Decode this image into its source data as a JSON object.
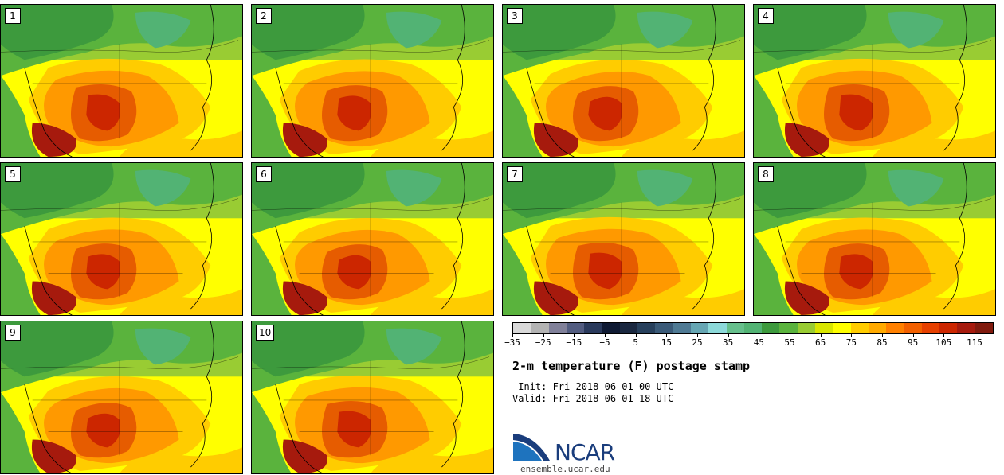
{
  "panels": [
    {
      "label": "1"
    },
    {
      "label": "2"
    },
    {
      "label": "3"
    },
    {
      "label": "4"
    },
    {
      "label": "5"
    },
    {
      "label": "6"
    },
    {
      "label": "7"
    },
    {
      "label": "8"
    },
    {
      "label": "9"
    },
    {
      "label": "10"
    }
  ],
  "colorbar": {
    "colors": [
      "#d9d9d9",
      "#b3b3b3",
      "#808099",
      "#525c80",
      "#2a3a5c",
      "#0f1a33",
      "#1a2840",
      "#27405c",
      "#3a5a78",
      "#4f7a94",
      "#66a6b3",
      "#8cd9d9",
      "#66bf8c",
      "#52b374",
      "#3d9a3d",
      "#5ab33d",
      "#99cc33",
      "#d9e600",
      "#ffff00",
      "#ffcc00",
      "#ffaa00",
      "#ff8000",
      "#f26000",
      "#e64000",
      "#cc2600",
      "#a61a0d",
      "#801a0d"
    ],
    "tick_labels": [
      "−35",
      "−25",
      "−15",
      "−5",
      "5",
      "15",
      "25",
      "35",
      "45",
      "55",
      "65",
      "75",
      "85",
      "95",
      "105",
      "115"
    ]
  },
  "title": "2-m temperature (F) postage stamp",
  "init_text": " Init: Fri 2018-06-01 00 UTC",
  "valid_text": "Valid: Fri 2018-06-01 18 UTC",
  "logo": {
    "name": "NCAR",
    "url": "ensemble.ucar.edu",
    "accent": "#1a3d7c"
  },
  "temp_colors": {
    "cold_green": "#3d9a3d",
    "green": "#5ab33d",
    "yellow_green": "#99cc33",
    "yellow": "#ffff00",
    "gold": "#ffcc00",
    "orange": "#ff9900",
    "deep_orange": "#e65c00",
    "red": "#cc2600",
    "dark_red": "#a61a0d",
    "teal": "#52b374"
  }
}
